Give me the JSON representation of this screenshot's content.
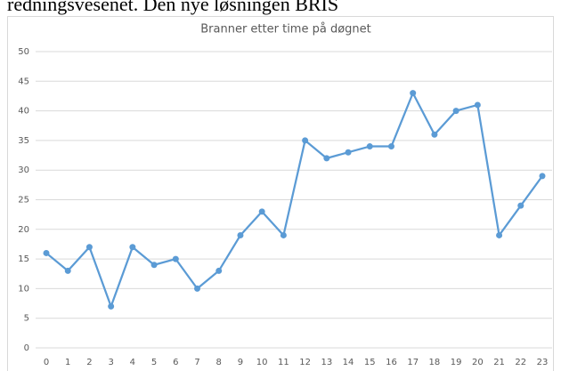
{
  "page_text": "redningsvesenet. Den nye løsningen BRIS",
  "chart_data": {
    "type": "line",
    "title": "Branner etter time på døgnet",
    "categories": [
      "0",
      "1",
      "2",
      "3",
      "4",
      "5",
      "6",
      "7",
      "8",
      "9",
      "10",
      "11",
      "12",
      "13",
      "14",
      "15",
      "16",
      "17",
      "18",
      "19",
      "20",
      "21",
      "22",
      "23"
    ],
    "values": [
      16,
      13,
      17,
      7,
      17,
      14,
      15,
      10,
      13,
      19,
      23,
      19,
      35,
      32,
      33,
      34,
      34,
      43,
      36,
      40,
      41,
      19,
      24,
      29
    ],
    "color": "#5b9bd5",
    "ylim": [
      0,
      50
    ],
    "yticks": [
      0,
      5,
      10,
      15,
      20,
      25,
      30,
      35,
      40,
      45,
      50
    ],
    "grid": true
  }
}
